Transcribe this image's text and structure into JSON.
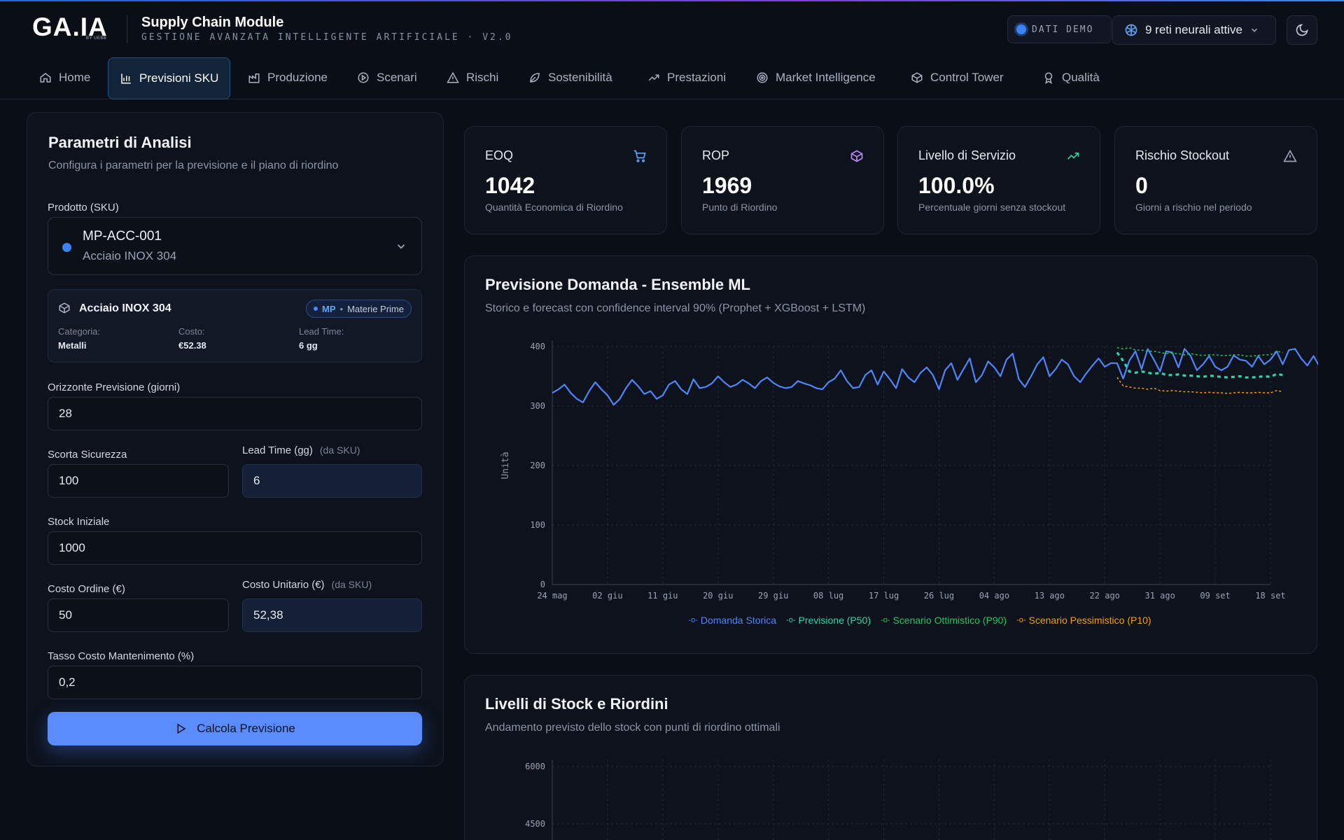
{
  "header": {
    "logo": "GA.IA",
    "logo_sub": "BY UEBB",
    "title": "Supply Chain Module",
    "subtitle": "GESTIONE AVANZATA INTELLIGENTE ARTIFICIALE · V2.0",
    "demo_badge": "DATI DEMO",
    "networks_label": "9 reti neurali attive"
  },
  "nav": {
    "tabs": [
      {
        "label": "Home",
        "icon": "home-icon"
      },
      {
        "label": "Previsioni SKU",
        "icon": "bar-chart-icon",
        "active": true
      },
      {
        "label": "Produzione",
        "icon": "factory-icon"
      },
      {
        "label": "Scenari",
        "icon": "play-circle-icon"
      },
      {
        "label": "Rischi",
        "icon": "alert-triangle-icon"
      },
      {
        "label": "Sostenibilità",
        "icon": "leaf-icon"
      },
      {
        "label": "Prestazioni",
        "icon": "trend-up-icon"
      },
      {
        "label": "Market Intelligence",
        "icon": "target-icon"
      },
      {
        "label": "Control Tower",
        "icon": "box-icon"
      },
      {
        "label": "Qualità",
        "icon": "award-icon"
      }
    ]
  },
  "params": {
    "title": "Parametri di Analisi",
    "subtitle": "Configura i parametri per la previsione e il piano di riordino",
    "product_label": "Prodotto (SKU)",
    "sku_code": "MP-ACC-001",
    "sku_name": "Acciaio INOX 304",
    "info": {
      "name": "Acciaio INOX 304",
      "badge_code": "MP",
      "badge_sep": "•",
      "badge_text": "Materie Prime",
      "cat_label": "Categoria:",
      "cat_value": "Metalli",
      "cost_label": "Costo:",
      "cost_value": "€52.38",
      "lead_label": "Lead Time:",
      "lead_value": "6 gg"
    },
    "horizon_label": "Orizzonte Previsione (giorni)",
    "horizon_value": "28",
    "safety_label": "Scorta Sicurezza",
    "safety_value": "100",
    "lead_label": "Lead Time (gg)",
    "lead_hint": "(da SKU)",
    "lead_value": "6",
    "stock_label": "Stock Iniziale",
    "stock_value": "1000",
    "order_cost_label": "Costo Ordine (€)",
    "order_cost_value": "50",
    "unit_cost_label": "Costo Unitario (€)",
    "unit_cost_hint": "(da SKU)",
    "unit_cost_value": "52,38",
    "holding_label": "Tasso Costo Mantenimento (%)",
    "holding_value": "0,2",
    "button_label": "Calcola Previsione"
  },
  "kpis": [
    {
      "title": "EOQ",
      "value": "1042",
      "desc": "Quantità Economica di Riordino",
      "icon": "cart-icon",
      "color": "#60a5fa"
    },
    {
      "title": "ROP",
      "value": "1969",
      "desc": "Punto di Riordino",
      "icon": "package-icon",
      "color": "#c084fc"
    },
    {
      "title": "Livello di Servizio",
      "value": "100.0%",
      "desc": "Percentuale giorni senza stockout",
      "icon": "trend-up-icon",
      "color": "#34d399"
    },
    {
      "title": "Rischio Stockout",
      "value": "0",
      "desc": "Giorni a rischio nel periodo",
      "icon": "alert-triangle-icon",
      "color": "#9aa3b4"
    }
  ],
  "forecast": {
    "title": "Previsione Domanda - Ensemble ML",
    "subtitle": "Storico e forecast con confidence interval 90% (Prophet + XGBoost + LSTM)"
  },
  "stock": {
    "title": "Livelli di Stock e Riordini",
    "subtitle": "Andamento previsto dello stock con punti di riordino ottimali"
  },
  "chart_data": [
    {
      "type": "line",
      "ylabel": "Unità",
      "ylim": [
        0,
        400
      ],
      "yticks": [
        "0",
        "100",
        "200",
        "300",
        "400"
      ],
      "xticks": [
        "24 mag",
        "02 giu",
        "11 giu",
        "20 giu",
        "29 giu",
        "08 lug",
        "17 lug",
        "26 lug",
        "04 ago",
        "13 ago",
        "22 ago",
        "31 ago",
        "09 set",
        "18 set"
      ],
      "grid": true,
      "legend": "bottom",
      "series": [
        {
          "name": "Domanda Storica",
          "color": "#4f86f7",
          "start": "2024-05-24",
          "values": [
            322,
            328,
            336,
            322,
            312,
            306,
            325,
            340,
            328,
            318,
            302,
            312,
            330,
            344,
            333,
            320,
            325,
            312,
            318,
            336,
            342,
            328,
            320,
            345,
            330,
            332,
            338,
            350,
            340,
            332,
            336,
            344,
            338,
            330,
            342,
            348,
            339,
            333,
            330,
            332,
            342,
            338,
            335,
            330,
            328,
            340,
            346,
            360,
            342,
            330,
            332,
            352,
            360,
            336,
            358,
            345,
            330,
            362,
            348,
            340,
            356,
            365,
            352,
            328,
            360,
            372,
            344,
            362,
            380,
            340,
            352,
            375,
            365,
            350,
            378,
            388,
            345,
            332,
            350,
            370,
            382,
            350,
            362,
            378,
            370,
            350,
            340,
            355,
            368,
            380,
            366,
            372,
            372,
            346,
            376,
            392,
            362,
            396,
            378,
            358,
            392,
            390,
            365,
            396,
            384,
            360,
            370,
            384,
            366,
            360,
            366,
            385,
            378,
            376,
            366,
            384,
            370,
            378,
            392,
            370,
            394,
            396,
            380,
            368,
            384,
            366,
            374,
            390,
            398,
            386,
            378,
            368,
            372,
            376,
            386,
            384,
            380,
            372,
            375,
            380,
            392,
            384,
            384
          ]
        },
        {
          "name": "Previsione (P50)",
          "color": "#2dd4a7",
          "start": "2024-08-24",
          "values": [
            390,
            376,
            358,
            356,
            358,
            356,
            354,
            356,
            352,
            352,
            353,
            351,
            351,
            350,
            349,
            351,
            350,
            349,
            348,
            349,
            350,
            348,
            348,
            349,
            350,
            349,
            354,
            352
          ]
        },
        {
          "name": "Scenario Ottimistico (P90)",
          "color": "#22c55e",
          "start": "2024-08-24",
          "values": [
            398,
            396,
            398,
            394,
            394,
            392,
            392,
            390,
            388,
            389,
            388,
            386,
            388,
            386,
            385,
            386,
            386,
            385,
            385,
            386,
            386,
            384,
            384,
            385,
            386,
            386,
            392,
            390
          ]
        },
        {
          "name": "Scenario Pessimistico (P10)",
          "color": "#f59e0b",
          "start": "2024-08-24",
          "values": [
            348,
            334,
            332,
            330,
            330,
            328,
            330,
            326,
            325,
            326,
            325,
            324,
            324,
            323,
            322,
            323,
            322,
            322,
            321,
            322,
            323,
            322,
            322,
            323,
            322,
            322,
            326,
            324
          ]
        }
      ]
    },
    {
      "type": "line",
      "yticks": [
        "6000",
        "4500"
      ],
      "grid": true,
      "series": []
    }
  ]
}
